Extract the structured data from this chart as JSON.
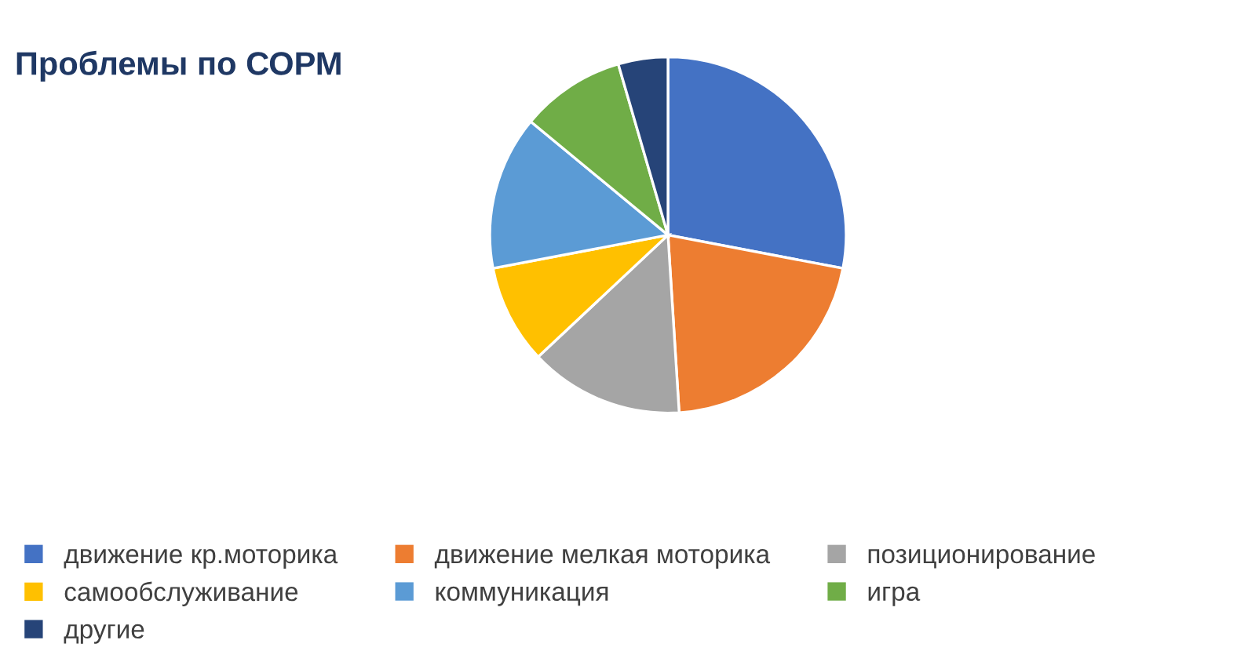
{
  "chart_data": {
    "type": "pie",
    "title": "Проблемы по СОРМ",
    "categories": [
      "движение кр.моторика",
      "движение мелкая моторика",
      "позиционирование",
      "самообслуживание",
      "коммуникация",
      "игра",
      "другие"
    ],
    "values": [
      28,
      21,
      14,
      9,
      14,
      9.5,
      4.5
    ],
    "colors": [
      "#4472c4",
      "#ed7d31",
      "#a5a5a5",
      "#ffc000",
      "#5b9bd5",
      "#70ad47",
      "#264478"
    ],
    "legend": "bottom"
  }
}
